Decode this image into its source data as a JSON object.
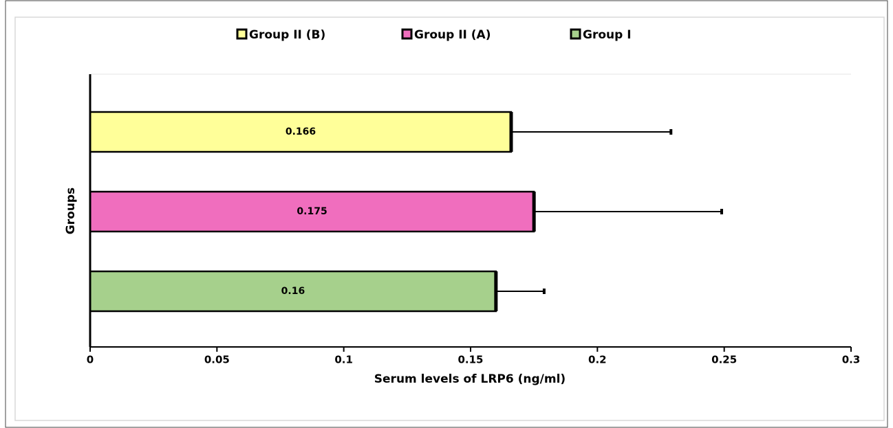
{
  "chart_data": {
    "type": "bar",
    "orientation": "horizontal",
    "xlabel": "Serum levels of LRP6 (ng/ml)",
    "ylabel": "Groups",
    "xlim": [
      0,
      0.3
    ],
    "xticks": [
      0,
      0.05,
      0.1,
      0.15,
      0.2,
      0.25,
      0.3
    ],
    "series": [
      {
        "name": "Group II (B)",
        "color": "#ffff99",
        "values": [
          0.166
        ],
        "errors": [
          0.063
        ]
      },
      {
        "name": "Group II (A)",
        "color": "#f06ebe",
        "values": [
          0.175
        ],
        "errors": [
          0.074
        ]
      },
      {
        "name": "Group I",
        "color": "#a6d08c",
        "values": [
          0.16
        ],
        "errors": [
          0.019
        ]
      }
    ]
  }
}
